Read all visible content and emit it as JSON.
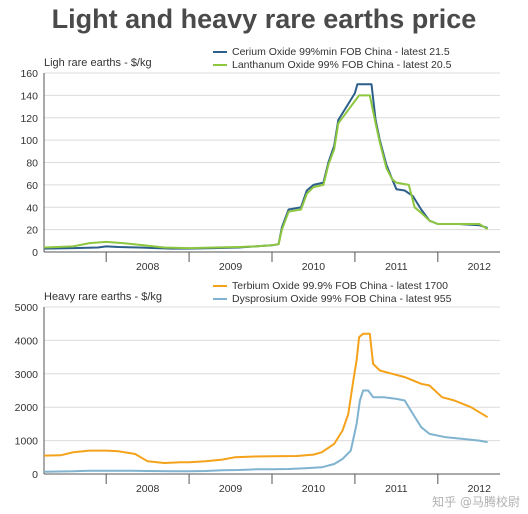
{
  "title": "Light and heavy rare earths price",
  "watermark": "知乎 @马腾校尉",
  "colors": {
    "cerium": "#2c5f8a",
    "lanthanum": "#8dc63f",
    "terbium": "#f5a21b",
    "dysprosium": "#7fb3cf",
    "grid": "#dcdcdc",
    "axis": "#555555"
  },
  "chart_data": [
    {
      "type": "line",
      "ylabel": "Ligh rare earths - $/kg",
      "ylim": [
        0,
        160
      ],
      "yticks": [
        "0",
        "20",
        "40",
        "60",
        "80",
        "100",
        "120",
        "140",
        "160"
      ],
      "xlim": [
        2007.25,
        2012.75
      ],
      "xticks": [
        "2008",
        "2009",
        "2010",
        "2011",
        "2012"
      ],
      "grid": true,
      "legend_position": "top-right",
      "series": [
        {
          "name": "Cerium Oxide 99%min FOB China - latest 21.5",
          "points": [
            [
              2007.25,
              3
            ],
            [
              2007.6,
              3.5
            ],
            [
              2007.9,
              4
            ],
            [
              2008.0,
              5
            ],
            [
              2008.15,
              4.5
            ],
            [
              2008.4,
              4
            ],
            [
              2008.6,
              3.5
            ],
            [
              2008.8,
              3
            ],
            [
              2009.0,
              3
            ],
            [
              2009.3,
              3.5
            ],
            [
              2009.6,
              4
            ],
            [
              2009.8,
              5
            ],
            [
              2010.0,
              6
            ],
            [
              2010.08,
              7
            ],
            [
              2010.12,
              22
            ],
            [
              2010.2,
              38
            ],
            [
              2010.35,
              40
            ],
            [
              2010.42,
              55
            ],
            [
              2010.5,
              60
            ],
            [
              2010.62,
              62
            ],
            [
              2010.68,
              80
            ],
            [
              2010.75,
              95
            ],
            [
              2010.8,
              118
            ],
            [
              2010.9,
              130
            ],
            [
              2011.0,
              142
            ],
            [
              2011.03,
              150
            ],
            [
              2011.2,
              150
            ],
            [
              2011.25,
              118
            ],
            [
              2011.3,
              100
            ],
            [
              2011.38,
              78
            ],
            [
              2011.45,
              65
            ],
            [
              2011.5,
              56
            ],
            [
              2011.6,
              55
            ],
            [
              2011.7,
              50
            ],
            [
              2011.8,
              38
            ],
            [
              2011.9,
              28
            ],
            [
              2012.0,
              25
            ],
            [
              2012.25,
              25
            ],
            [
              2012.5,
              24
            ],
            [
              2012.6,
              21.5
            ]
          ]
        },
        {
          "name": "Lanthanum Oxide 99% FOB China - latest 20.5",
          "points": [
            [
              2007.25,
              4
            ],
            [
              2007.6,
              5
            ],
            [
              2007.8,
              8
            ],
            [
              2008.0,
              9
            ],
            [
              2008.2,
              8
            ],
            [
              2008.45,
              6
            ],
            [
              2008.7,
              4
            ],
            [
              2009.0,
              3.5
            ],
            [
              2009.3,
              4
            ],
            [
              2009.6,
              4.5
            ],
            [
              2009.8,
              5
            ],
            [
              2010.0,
              6
            ],
            [
              2010.08,
              7
            ],
            [
              2010.12,
              20
            ],
            [
              2010.2,
              36
            ],
            [
              2010.35,
              38
            ],
            [
              2010.42,
              52
            ],
            [
              2010.5,
              58
            ],
            [
              2010.62,
              60
            ],
            [
              2010.68,
              78
            ],
            [
              2010.75,
              92
            ],
            [
              2010.8,
              115
            ],
            [
              2010.9,
              125
            ],
            [
              2011.0,
              135
            ],
            [
              2011.05,
              140
            ],
            [
              2011.18,
              140
            ],
            [
              2011.25,
              115
            ],
            [
              2011.3,
              98
            ],
            [
              2011.38,
              75
            ],
            [
              2011.45,
              65
            ],
            [
              2011.5,
              62
            ],
            [
              2011.65,
              60
            ],
            [
              2011.72,
              40
            ],
            [
              2011.8,
              35
            ],
            [
              2011.9,
              28
            ],
            [
              2012.0,
              25
            ],
            [
              2012.25,
              25
            ],
            [
              2012.5,
              25
            ],
            [
              2012.6,
              20.5
            ]
          ]
        }
      ]
    },
    {
      "type": "line",
      "ylabel": "Heavy rare earths - $/kg",
      "ylim": [
        0,
        5000
      ],
      "yticks": [
        "0",
        "1000",
        "2000",
        "3000",
        "4000",
        "5000"
      ],
      "xlim": [
        2007.25,
        2012.75
      ],
      "xticks": [
        "2008",
        "2009",
        "2010",
        "2011",
        "2012"
      ],
      "grid": true,
      "legend_position": "top-right",
      "series": [
        {
          "name": "Terbium Oxide 99.9% FOB China - latest 1700",
          "points": [
            [
              2007.25,
              550
            ],
            [
              2007.45,
              560
            ],
            [
              2007.6,
              650
            ],
            [
              2007.8,
              700
            ],
            [
              2008.0,
              700
            ],
            [
              2008.15,
              680
            ],
            [
              2008.35,
              600
            ],
            [
              2008.5,
              380
            ],
            [
              2008.7,
              330
            ],
            [
              2008.9,
              350
            ],
            [
              2009.0,
              350
            ],
            [
              2009.2,
              380
            ],
            [
              2009.4,
              430
            ],
            [
              2009.55,
              500
            ],
            [
              2009.75,
              520
            ],
            [
              2010.0,
              530
            ],
            [
              2010.3,
              540
            ],
            [
              2010.5,
              580
            ],
            [
              2010.6,
              650
            ],
            [
              2010.75,
              900
            ],
            [
              2010.85,
              1300
            ],
            [
              2010.92,
              1800
            ],
            [
              2010.98,
              2800
            ],
            [
              2011.02,
              3400
            ],
            [
              2011.05,
              4100
            ],
            [
              2011.1,
              4200
            ],
            [
              2011.18,
              4200
            ],
            [
              2011.22,
              3300
            ],
            [
              2011.3,
              3100
            ],
            [
              2011.45,
              3000
            ],
            [
              2011.6,
              2900
            ],
            [
              2011.8,
              2700
            ],
            [
              2011.9,
              2650
            ],
            [
              2012.05,
              2300
            ],
            [
              2012.2,
              2200
            ],
            [
              2012.4,
              2000
            ],
            [
              2012.5,
              1850
            ],
            [
              2012.6,
              1700
            ]
          ]
        },
        {
          "name": "Dysprosium Oxide 99% FOB China - latest 955",
          "points": [
            [
              2007.25,
              70
            ],
            [
              2007.6,
              80
            ],
            [
              2007.8,
              100
            ],
            [
              2008.0,
              100
            ],
            [
              2008.3,
              100
            ],
            [
              2008.5,
              90
            ],
            [
              2008.8,
              85
            ],
            [
              2009.0,
              85
            ],
            [
              2009.2,
              90
            ],
            [
              2009.4,
              110
            ],
            [
              2009.6,
              120
            ],
            [
              2009.8,
              140
            ],
            [
              2010.0,
              140
            ],
            [
              2010.2,
              150
            ],
            [
              2010.4,
              170
            ],
            [
              2010.6,
              200
            ],
            [
              2010.75,
              300
            ],
            [
              2010.85,
              450
            ],
            [
              2010.95,
              700
            ],
            [
              2011.02,
              1500
            ],
            [
              2011.06,
              2200
            ],
            [
              2011.1,
              2500
            ],
            [
              2011.16,
              2500
            ],
            [
              2011.22,
              2300
            ],
            [
              2011.35,
              2300
            ],
            [
              2011.5,
              2250
            ],
            [
              2011.6,
              2200
            ],
            [
              2011.7,
              1800
            ],
            [
              2011.8,
              1400
            ],
            [
              2011.9,
              1200
            ],
            [
              2012.1,
              1100
            ],
            [
              2012.3,
              1050
            ],
            [
              2012.5,
              1000
            ],
            [
              2012.6,
              955
            ]
          ]
        }
      ]
    }
  ]
}
